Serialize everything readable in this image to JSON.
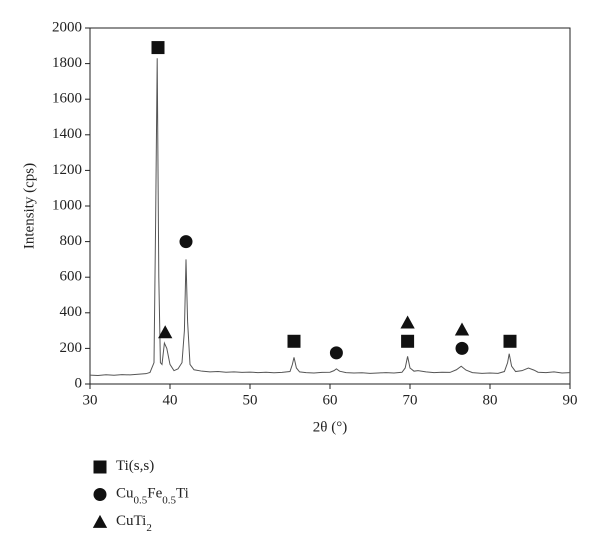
{
  "chart_data": {
    "type": "line",
    "xlabel": "2θ (°)",
    "ylabel": "Intensity (cps)",
    "xlim": [
      30,
      90
    ],
    "xticks": [
      30,
      40,
      50,
      60,
      70,
      80,
      90
    ],
    "ylim": [
      0,
      2000
    ],
    "yticks": [
      0,
      200,
      400,
      600,
      800,
      1000,
      1200,
      1400,
      1600,
      1800,
      2000
    ],
    "line": {
      "color": "#555555",
      "x": [
        30,
        31,
        32,
        33,
        34,
        35,
        36,
        37,
        37.5,
        38,
        38.2,
        38.4,
        38.6,
        38.8,
        39.0,
        39.3,
        39.6,
        40,
        40.5,
        41,
        41.5,
        41.8,
        42.0,
        42.2,
        42.5,
        43,
        44,
        45,
        46,
        47,
        48,
        49,
        50,
        51,
        52,
        53,
        54,
        55,
        55.3,
        55.5,
        55.8,
        56.2,
        57,
        58,
        59,
        60,
        60.5,
        60.8,
        61.2,
        62,
        63,
        64,
        65,
        66,
        67,
        68,
        69,
        69.4,
        69.7,
        70,
        70.5,
        71,
        72,
        73,
        74,
        75,
        75.8,
        76.4,
        77,
        77.8,
        79,
        80,
        81,
        81.8,
        82.2,
        82.4,
        82.7,
        83.2,
        84,
        84.8,
        85.5,
        86,
        87,
        88,
        89,
        90
      ],
      "values": [
        50,
        48,
        52,
        49,
        53,
        51,
        55,
        58,
        65,
        120,
        900,
        1830,
        600,
        120,
        110,
        230,
        200,
        110,
        75,
        85,
        120,
        300,
        700,
        350,
        110,
        80,
        72,
        68,
        70,
        66,
        68,
        65,
        67,
        64,
        66,
        63,
        65,
        70,
        110,
        150,
        90,
        68,
        64,
        62,
        65,
        66,
        75,
        85,
        72,
        64,
        62,
        63,
        60,
        62,
        64,
        62,
        66,
        90,
        155,
        90,
        72,
        75,
        68,
        64,
        66,
        65,
        80,
        100,
        78,
        64,
        60,
        62,
        60,
        70,
        120,
        170,
        100,
        70,
        75,
        90,
        78,
        66,
        64,
        68,
        62,
        64
      ]
    },
    "series": [
      {
        "name": "Ti(s,s)",
        "marker": "square",
        "color": "#111111",
        "x": [
          38.5,
          55.5,
          69.7,
          82.5
        ],
        "values": [
          1890,
          240,
          240,
          240
        ]
      },
      {
        "name": "Cu0.5Fe0.5Ti",
        "marker": "circle",
        "color": "#111111",
        "x": [
          42,
          60.8,
          76.5
        ],
        "values": [
          800,
          175,
          200
        ]
      },
      {
        "name": "CuTi2",
        "marker": "triangle",
        "color": "#111111",
        "x": [
          39.4,
          69.7,
          76.5
        ],
        "values": [
          290,
          345,
          305
        ]
      }
    ]
  }
}
